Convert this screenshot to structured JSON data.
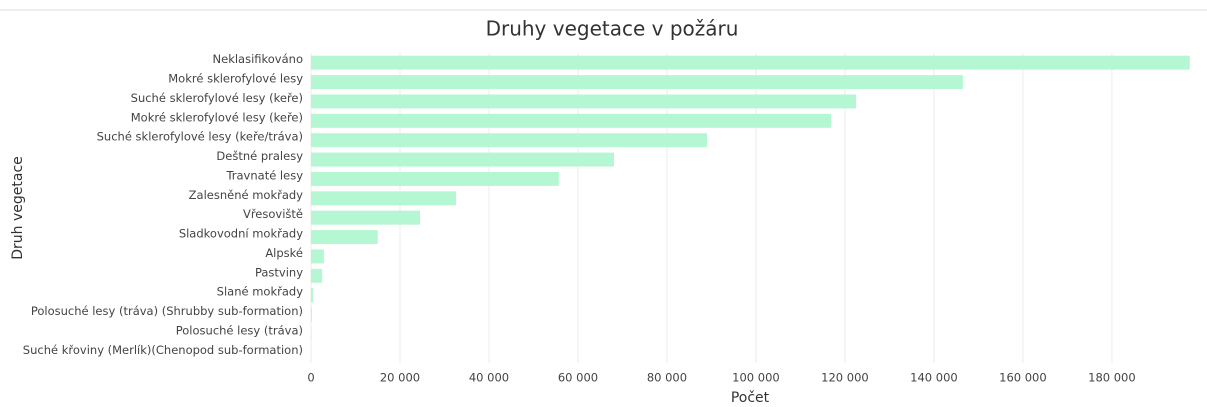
{
  "chart_data": {
    "type": "bar",
    "orientation": "horizontal",
    "title": "Druhy vegetace v požáru",
    "xlabel": "Počet",
    "ylabel": "Druh vegetace",
    "categories": [
      "Neklasifikováno",
      "Mokré sklerofylové lesy",
      "Suché sklerofylové lesy (keře)",
      "Mokré sklerofylové lesy (keře)",
      "Suché sklerofylové lesy (keře/tráva)",
      "Deštné pralesy",
      "Travnaté lesy",
      "Zalesněné mokřady",
      "Vřesoviště",
      "Sladkovodní mokřady",
      "Alpské",
      "Pastviny",
      "Slané mokřady",
      "Polosuché lesy (tráva) (Shrubby sub-formation)",
      "Polosuché lesy (tráva)",
      "Suché křoviny (Merlík)(Chenopod sub-formation)"
    ],
    "values": [
      197500,
      146500,
      122500,
      116900,
      89000,
      68100,
      55700,
      32600,
      24500,
      15000,
      2900,
      2500,
      500,
      200,
      100,
      50
    ],
    "color": "#b5f7d3",
    "xlim": [
      0,
      198000
    ],
    "xticks": [
      0,
      {
        "value": 20000,
        "label": "20 000"
      },
      {
        "value": 40000,
        "label": "40 000"
      },
      {
        "value": 60000,
        "label": "60 000"
      },
      {
        "value": 80000,
        "label": "80 000"
      },
      {
        "value": 100000,
        "label": "100 000"
      },
      {
        "value": 120000,
        "label": "120 000"
      },
      {
        "value": 140000,
        "label": "140 000"
      },
      {
        "value": 160000,
        "label": "160 000"
      },
      {
        "value": 180000,
        "label": "180 000"
      }
    ],
    "grid": true
  }
}
